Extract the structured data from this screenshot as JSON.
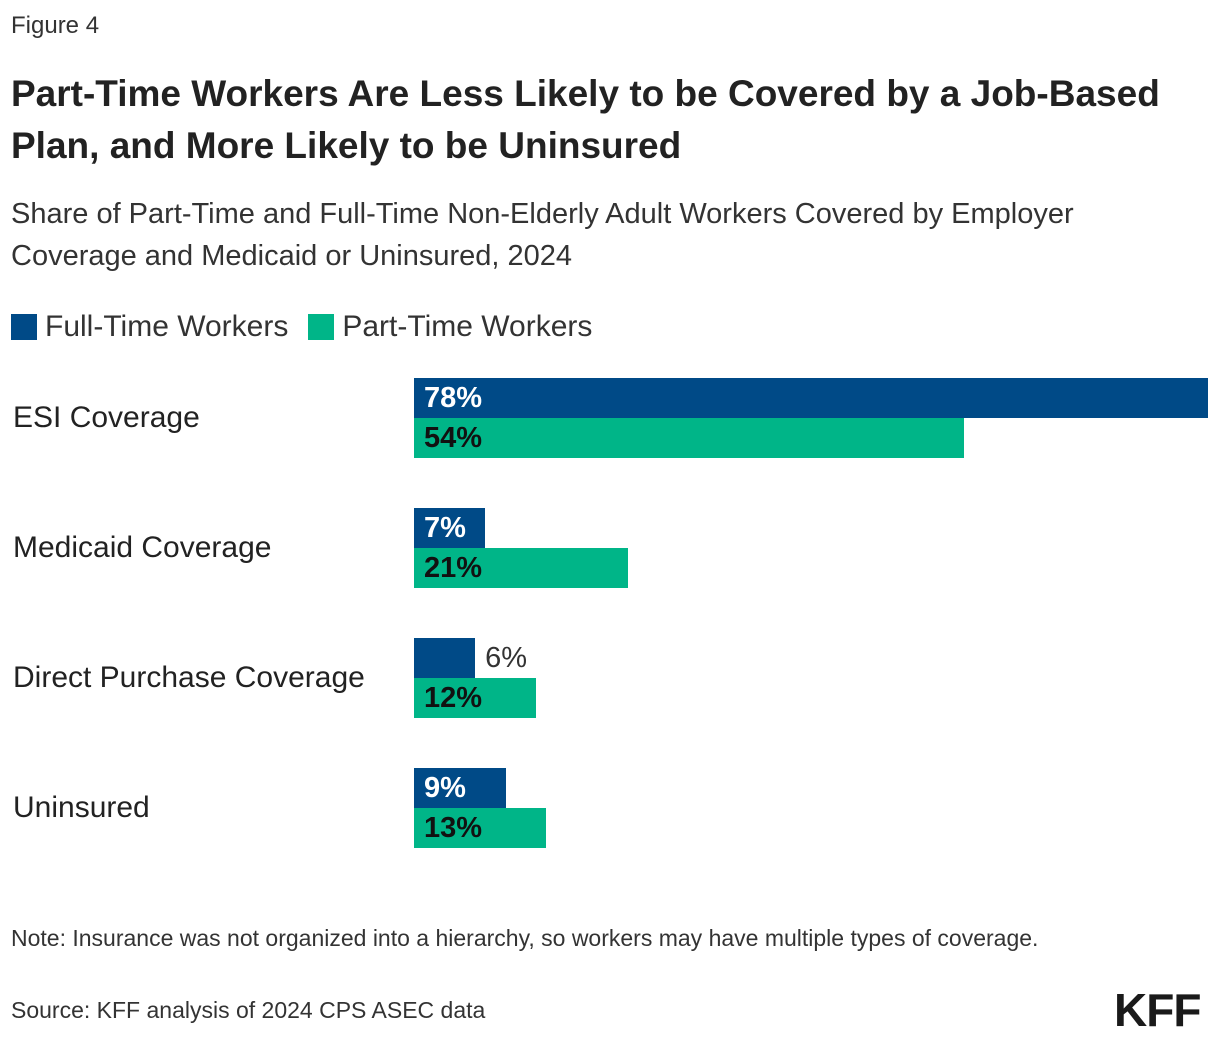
{
  "figure_label": "Figure 4",
  "chart_data": {
    "type": "bar",
    "orientation": "horizontal",
    "title": "Part-Time Workers Are Less Likely to be Covered by a Job-Based Plan, and More Likely to be Uninsured",
    "subtitle": "Share of Part-Time and Full-Time Non-Elderly Adult Workers Covered by Employer Coverage and Medicaid or Uninsured, 2024",
    "categories": [
      "ESI Coverage",
      "Medicaid Coverage",
      "Direct Purchase Coverage",
      "Uninsured"
    ],
    "series": [
      {
        "name": "Full-Time Workers",
        "color": "#004A87",
        "values": [
          78,
          7,
          6,
          9
        ]
      },
      {
        "name": "Part-Time Workers",
        "color": "#00B588",
        "values": [
          54,
          21,
          12,
          13
        ]
      }
    ],
    "value_suffix": "%",
    "xlim": [
      0,
      78
    ],
    "grid": false,
    "legend": "top-left"
  },
  "note": "Note: Insurance was not organized into a hierarchy, so workers may have multiple types of coverage.",
  "source": "Source: KFF analysis of 2024 CPS ASEC data",
  "logo": "KFF"
}
